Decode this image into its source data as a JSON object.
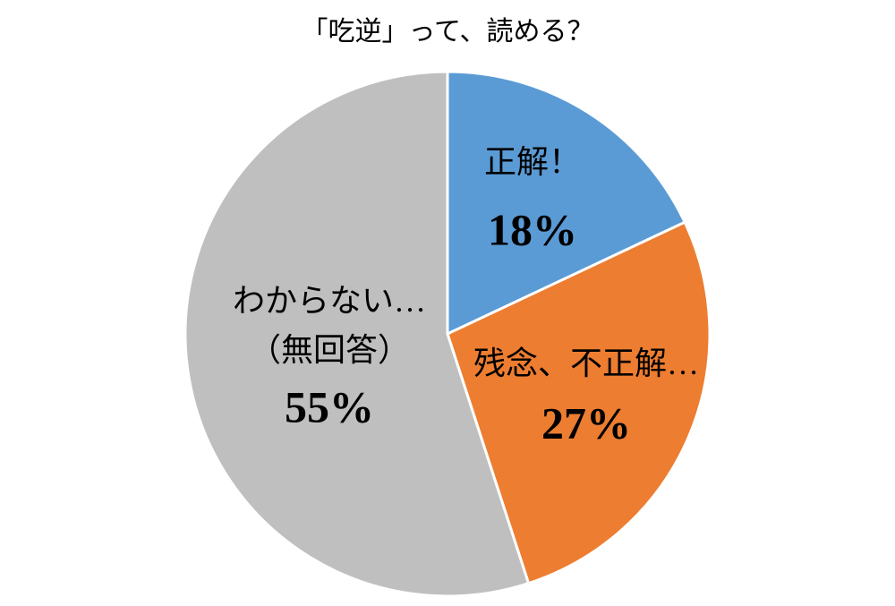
{
  "chart_data": {
    "type": "pie",
    "title": "「吃逆」って、読める？",
    "categories": [
      "正解！",
      "残念、不正解…",
      "わからない…\n（無回答）"
    ],
    "values": [
      18,
      27,
      55
    ],
    "value_labels": [
      "18%",
      "27%",
      "55%"
    ],
    "colors": [
      "#5b9bd5",
      "#ed7d31",
      "#bfbfbf"
    ]
  }
}
